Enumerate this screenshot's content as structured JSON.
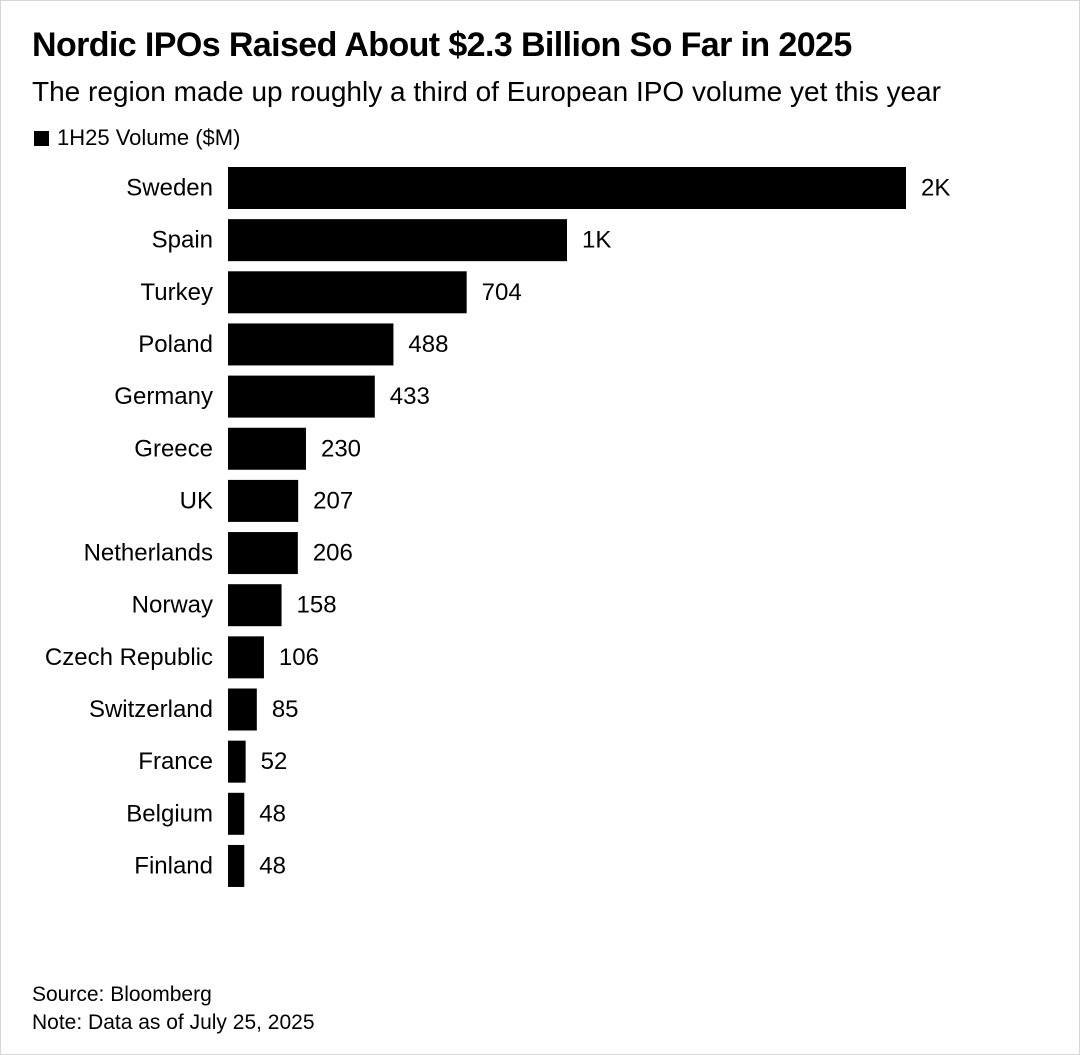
{
  "title": "Nordic IPOs Raised About $2.3 Billion So Far in 2025",
  "subtitle": "The region made up roughly a third of European IPO volume yet this year",
  "legend": {
    "label": "1H25 Volume ($M)",
    "color": "#000000"
  },
  "source": "Source: Bloomberg",
  "note": "Note: Data as of July 25, 2025",
  "chart_data": {
    "type": "bar",
    "orientation": "horizontal",
    "categories": [
      "Sweden",
      "Spain",
      "Turkey",
      "Poland",
      "Germany",
      "Greece",
      "UK",
      "Netherlands",
      "Norway",
      "Czech Republic",
      "Switzerland",
      "France",
      "Belgium",
      "Finland"
    ],
    "series": [
      {
        "name": "1H25 Volume ($M)",
        "values": [
          2000,
          1000,
          704,
          488,
          433,
          230,
          207,
          206,
          158,
          106,
          85,
          52,
          48,
          48
        ],
        "labels": [
          "2K",
          "1K",
          "704",
          "488",
          "433",
          "230",
          "207",
          "206",
          "158",
          "106",
          "85",
          "52",
          "48",
          "48"
        ],
        "color": "#000000"
      }
    ],
    "title": "Nordic IPOs Raised About $2.3 Billion So Far in 2025",
    "subtitle": "The region made up roughly a third of European IPO volume yet this year",
    "xlabel": "",
    "ylabel": "",
    "grid": false,
    "legend_position": "top-left"
  }
}
